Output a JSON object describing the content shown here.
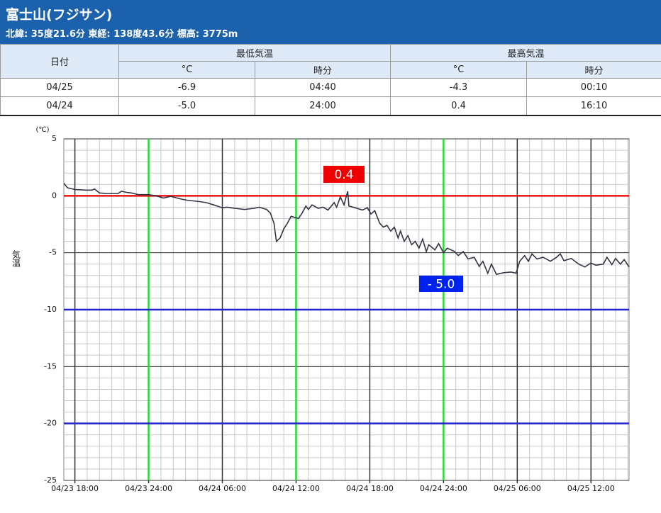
{
  "header": {
    "title": "富士山(フジサン)",
    "subtitle": "北緯: 35度21.6分 東経: 138度43.6分 標高: 3775m"
  },
  "table": {
    "header": [
      "日付",
      "最低気温",
      "最高気温"
    ],
    "subheader": [
      "°C",
      "時分",
      "°C",
      "時分"
    ],
    "rows": [
      [
        "04/25",
        "-6.9",
        "04:40",
        "-4.3",
        "00:10"
      ],
      [
        "04/24",
        "-5.0",
        "24:00",
        "0.4",
        "16:10"
      ]
    ]
  },
  "chart_data": {
    "type": "line",
    "ylabel": "気温",
    "yunit": "(℃)",
    "color": "#333344",
    "x": [
      17.1,
      17.4,
      18,
      18.9,
      19.4,
      19.6,
      20.0,
      20.6,
      21.5,
      21.8,
      22.2,
      22.6,
      23.2,
      24,
      24.6,
      25.2,
      25.8,
      26.7,
      27.2,
      28.1,
      28.7,
      29.3,
      30,
      30.4,
      31.0,
      31.8,
      32.6,
      33.0,
      33.6,
      33.9,
      34.2,
      34.4,
      34.7,
      35.0,
      35.3,
      35.6,
      35.9,
      36.2,
      36.5,
      36.8,
      37.0,
      37.3,
      37.8,
      38.2,
      38.6,
      39.1,
      39.3,
      39.6,
      39.9,
      40.2,
      40.3,
      40.8,
      41.4,
      41.8,
      42.1,
      42.4,
      42.8,
      43.1,
      43.4,
      43.7,
      44.0,
      44.3,
      44.5,
      44.8,
      45.1,
      45.4,
      45.7,
      46.0,
      46.3,
      46.6,
      46.8,
      47.3,
      47.6,
      48,
      48.3,
      48.9,
      49.2,
      49.6,
      50.0,
      50.5,
      50.9,
      51.2,
      51.6,
      51.9,
      52.3,
      52.9,
      53.5,
      53.9,
      54.2,
      54.6,
      54.9,
      55.2,
      55.6,
      56.1,
      56.7,
      57.2,
      57.5,
      57.8,
      58.4,
      59.0,
      59.5,
      60,
      60.4,
      61.0,
      61.3,
      61.7,
      62.0,
      62.4,
      62.7,
      63.1
    ],
    "values": [
      1.1,
      0.7,
      0.55,
      0.5,
      0.5,
      0.6,
      0.25,
      0.2,
      0.2,
      0.4,
      0.3,
      0.25,
      0.1,
      0.1,
      0,
      -0.2,
      -0.05,
      -0.3,
      -0.4,
      -0.5,
      -0.6,
      -0.8,
      -1.05,
      -1.0,
      -1.1,
      -1.2,
      -1.1,
      -1.0,
      -1.2,
      -1.5,
      -2.4,
      -4.0,
      -3.7,
      -2.9,
      -2.4,
      -1.8,
      -1.9,
      -2.0,
      -1.5,
      -0.9,
      -1.2,
      -0.8,
      -1.1,
      -1.0,
      -1.25,
      -0.6,
      -1.0,
      -0.1,
      -0.8,
      0.4,
      -0.9,
      -1.05,
      -1.25,
      -1.05,
      -1.6,
      -1.3,
      -2.4,
      -2.75,
      -2.6,
      -3.1,
      -2.75,
      -3.7,
      -3.1,
      -4.0,
      -3.5,
      -4.3,
      -4.0,
      -4.6,
      -3.8,
      -4.9,
      -4.3,
      -4.75,
      -4.2,
      -5.0,
      -4.6,
      -4.9,
      -5.25,
      -4.9,
      -5.55,
      -5.4,
      -6.2,
      -5.75,
      -6.8,
      -6.0,
      -6.9,
      -6.75,
      -6.7,
      -6.8,
      -5.75,
      -5.25,
      -5.75,
      -5.1,
      -5.55,
      -5.4,
      -5.75,
      -5.4,
      -5.1,
      -5.7,
      -5.5,
      -6.0,
      -6.25,
      -5.9,
      -6.1,
      -6.0,
      -5.4,
      -6.05,
      -5.5,
      -6.0,
      -5.6,
      -6.25
    ],
    "xlim": [
      17.1,
      63.1
    ],
    "ylim": [
      -25,
      5
    ],
    "xticks": [
      {
        "value": 18,
        "label": "04/23 18:00"
      },
      {
        "value": 24,
        "label": "04/23 24:00"
      },
      {
        "value": 30,
        "label": "04/24 06:00"
      },
      {
        "value": 36,
        "label": "04/24 12:00"
      },
      {
        "value": 42,
        "label": "04/24 18:00"
      },
      {
        "value": 48,
        "label": "04/24 24:00"
      },
      {
        "value": 54,
        "label": "04/25 06:00"
      },
      {
        "value": 60,
        "label": "04/25 12:00"
      }
    ],
    "yticks": [
      5,
      0,
      -5,
      -10,
      -15,
      -20,
      -25
    ],
    "grid": true,
    "minor_grid": true,
    "grid_color": "#333333",
    "vlines": [
      {
        "value": 24,
        "color": "#22dd33"
      },
      {
        "value": 36,
        "color": "#22dd33"
      },
      {
        "value": 48,
        "color": "#22dd33"
      }
    ],
    "hlines": [
      {
        "value": 0,
        "color": "#ee1111"
      },
      {
        "value": -10,
        "color": "#2222cc"
      },
      {
        "value": -20,
        "color": "#2222cc"
      }
    ],
    "annotations": [
      {
        "label": "0.4",
        "color": "#ee0000"
      },
      {
        "label": "- 5.0",
        "color": "#0022ee"
      }
    ]
  }
}
